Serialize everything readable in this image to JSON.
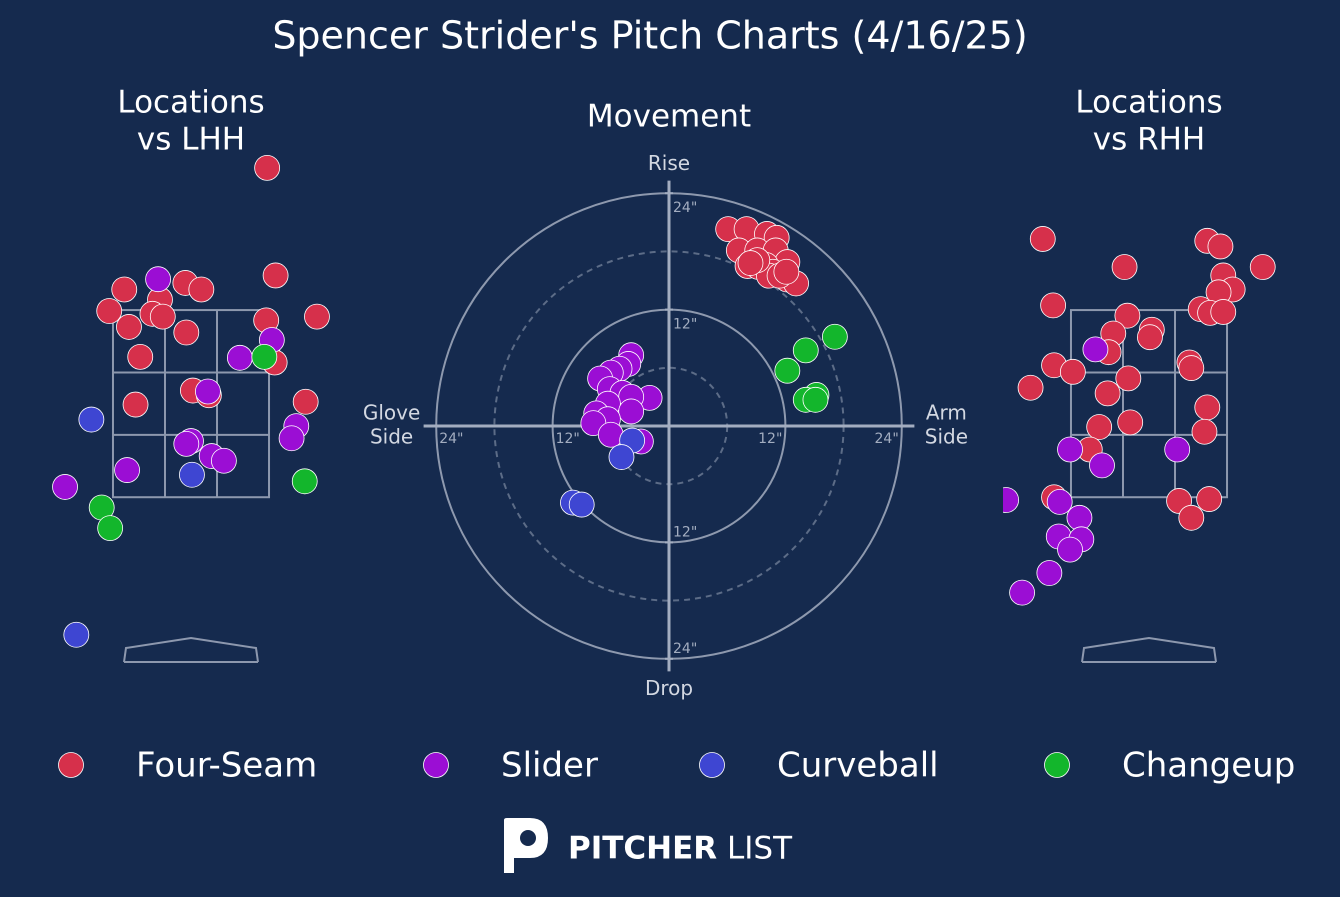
{
  "title": "Spencer Strider's Pitch Charts (4/16/25)",
  "logo": [
    "PITCHER",
    "LIST"
  ],
  "chart_data": [
    {
      "type": "scatter",
      "title": [
        "Locations",
        "vs LHH"
      ],
      "xlim": [
        -1.55,
        1.55
      ],
      "ylim": [
        -0.4,
        5.2
      ],
      "zone": {
        "x": [
          -0.83,
          0.83
        ],
        "z": [
          1.5,
          3.5
        ]
      },
      "series": [
        {
          "name": "Four-Seam",
          "color": "#d6304b",
          "x": [
            0.81,
            -0.71,
            -0.06,
            0.11,
            0.9,
            -0.87,
            -0.66,
            -0.33,
            -0.41,
            -0.3,
            -0.05,
            0.8,
            1.34,
            -0.54,
            0.82,
            0.89,
            0.02,
            0.19,
            -0.59,
            1.22
          ],
          "values": [
            5.02,
            3.72,
            3.79,
            3.72,
            3.87,
            3.49,
            3.32,
            3.61,
            3.46,
            3.43,
            3.26,
            3.39,
            3.43,
            3.0,
            3.02,
            2.94,
            2.64,
            2.59,
            2.49,
            2.52
          ]
        },
        {
          "name": "Slider",
          "color": "#9b0ed4",
          "x": [
            -0.35,
            0.86,
            0.52,
            0.18,
            0.0,
            -0.05,
            1.12,
            1.07,
            0.22,
            0.35,
            -0.68,
            -1.34
          ],
          "values": [
            3.83,
            3.18,
            2.99,
            2.63,
            2.1,
            2.07,
            2.26,
            2.13,
            1.94,
            1.89,
            1.79,
            1.61
          ]
        },
        {
          "name": "Curveball",
          "color": "#3e46d2",
          "x": [
            -1.06,
            0.01,
            -1.22
          ],
          "values": [
            2.33,
            1.74,
            0.03
          ]
        },
        {
          "name": "Changeup",
          "color": "#13b62c",
          "x": [
            0.78,
            1.21,
            -0.95,
            -0.86
          ],
          "values": [
            3.0,
            1.67,
            1.39,
            1.17
          ]
        }
      ]
    },
    {
      "type": "scatter",
      "title": [
        "Movement"
      ],
      "xlim": [
        -25.3,
        25.3
      ],
      "ylim": [
        -25.3,
        25.3
      ],
      "x_labels": [
        [
          "Glove",
          "Side"
        ],
        [
          "Arm",
          "Side"
        ]
      ],
      "y_labels": [
        "Drop",
        "Rise"
      ],
      "xticks": [
        {
          "value": -24,
          "label": "24\""
        },
        {
          "value": -12,
          "label": "12\""
        },
        {
          "value": 12,
          "label": "12\""
        },
        {
          "value": 24,
          "label": "24\""
        }
      ],
      "yticks": [
        {
          "value": -24,
          "label": "24\""
        },
        {
          "value": -12,
          "label": "12\""
        },
        {
          "value": 12,
          "label": "12\""
        },
        {
          "value": 24,
          "label": "24\""
        }
      ],
      "minor_rings": [
        6,
        18
      ],
      "series": [
        {
          "name": "Four-Seam",
          "color": "#d6304b",
          "x": [
            6.1,
            8.0,
            10.1,
            11.1,
            7.2,
            9.1,
            11.0,
            12.2,
            8.1,
            10.0,
            9.2,
            10.7,
            12.2,
            13.1,
            10.3,
            11.4,
            12.1,
            9.1,
            8.4
          ],
          "values": [
            20.3,
            20.3,
            19.8,
            19.4,
            18.1,
            18.1,
            18.1,
            16.9,
            16.5,
            16.6,
            16.4,
            15.9,
            15.1,
            14.7,
            15.5,
            15.5,
            15.9,
            17.1,
            16.8
          ]
        },
        {
          "name": "Slider",
          "color": "#9b0ed4",
          "x": [
            -3.9,
            -4.2,
            -5.1,
            -6.0,
            -7.1,
            -6.1,
            -4.8,
            -2.0,
            -3.9,
            -6.3,
            -3.9,
            -7.5,
            -6.3,
            -7.8,
            -6.0,
            -2.9
          ],
          "values": [
            7.3,
            6.4,
            5.9,
            5.5,
            4.9,
            3.8,
            3.4,
            2.9,
            3.0,
            2.3,
            1.5,
            1.3,
            0.7,
            0.3,
            -0.9,
            -1.6
          ]
        },
        {
          "name": "Curveball",
          "color": "#3e46d2",
          "x": [
            -3.8,
            -4.9,
            -9.9,
            -9.0
          ],
          "values": [
            -1.5,
            -3.2,
            -7.9,
            -8.1
          ]
        },
        {
          "name": "Changeup",
          "color": "#13b62c",
          "x": [
            17.1,
            14.1,
            12.2,
            15.2,
            14.1,
            15.1
          ],
          "values": [
            9.2,
            7.8,
            5.7,
            3.2,
            2.7,
            2.7
          ]
        }
      ]
    },
    {
      "type": "scatter",
      "title": [
        "Locations",
        "vs RHH"
      ],
      "xlim": [
        -1.55,
        1.55
      ],
      "ylim": [
        -0.4,
        5.2
      ],
      "zone": {
        "x": [
          -0.83,
          0.83
        ],
        "z": [
          1.5,
          3.5
        ]
      },
      "series": [
        {
          "name": "Four-Seam",
          "color": "#d6304b",
          "x": [
            -1.13,
            -0.26,
            0.62,
            0.76,
            1.21,
            0.79,
            0.89,
            0.74,
            -1.02,
            0.55,
            0.65,
            0.79,
            -0.23,
            -0.38,
            0.03,
            0.01,
            -0.43,
            -1.01,
            -0.81,
            0.43,
            0.45,
            -0.22,
            -0.44,
            -1.26,
            0.62,
            -0.53,
            -0.2,
            0.59,
            -0.63,
            -1.01,
            0.32,
            0.64,
            0.45
          ],
          "values": [
            4.26,
            3.96,
            4.24,
            4.18,
            3.96,
            3.87,
            3.72,
            3.69,
            3.55,
            3.51,
            3.47,
            3.48,
            3.44,
            3.25,
            3.29,
            3.21,
            3.05,
            2.91,
            2.84,
            2.94,
            2.88,
            2.77,
            2.61,
            2.67,
            2.46,
            2.25,
            2.3,
            2.2,
            2.01,
            1.5,
            1.46,
            1.48,
            1.28
          ]
        },
        {
          "name": "Slider",
          "color": "#9b0ed4",
          "x": [
            -0.57,
            -0.84,
            -0.5,
            0.3,
            -1.52,
            -0.95,
            -0.74,
            -0.96,
            -0.72,
            -0.84,
            -1.06,
            -1.35
          ],
          "values": [
            3.08,
            2.01,
            1.84,
            2.01,
            1.47,
            1.45,
            1.28,
            1.08,
            1.05,
            0.94,
            0.69,
            0.48
          ]
        }
      ]
    }
  ]
}
